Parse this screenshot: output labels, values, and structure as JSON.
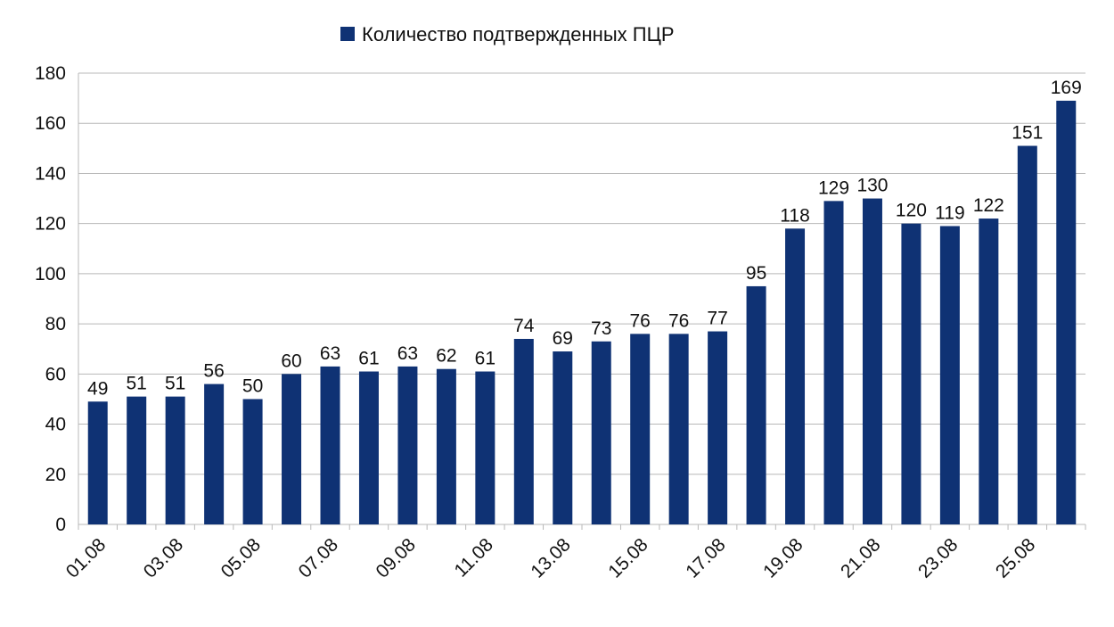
{
  "chart_data": {
    "type": "bar",
    "title": "",
    "xlabel": "",
    "ylabel": "",
    "legend": "top-center",
    "grid": true,
    "ylim": [
      0,
      180
    ],
    "yticks": [
      0,
      20,
      40,
      60,
      80,
      100,
      120,
      140,
      160,
      180
    ],
    "categories": [
      "01.08",
      "02.08",
      "03.08",
      "04.08",
      "05.08",
      "06.08",
      "07.08",
      "08.08",
      "09.08",
      "10.08",
      "11.08",
      "12.08",
      "13.08",
      "14.08",
      "15.08",
      "16.08",
      "17.08",
      "18.08",
      "19.08",
      "20.08",
      "21.08",
      "22.08",
      "23.08",
      "24.08",
      "25.08",
      "26.08"
    ],
    "xtick_labels": [
      "01.08",
      "03.08",
      "05.08",
      "07.08",
      "09.08",
      "11.08",
      "13.08",
      "15.08",
      "17.08",
      "19.08",
      "21.08",
      "23.08",
      "25.08"
    ],
    "series": [
      {
        "name": "Количество подтвержденных ПЦР",
        "color": "#0f3274",
        "values": [
          49,
          51,
          51,
          56,
          50,
          60,
          63,
          61,
          63,
          62,
          61,
          74,
          69,
          73,
          76,
          76,
          77,
          95,
          118,
          129,
          130,
          120,
          119,
          122,
          151,
          169
        ]
      }
    ]
  }
}
